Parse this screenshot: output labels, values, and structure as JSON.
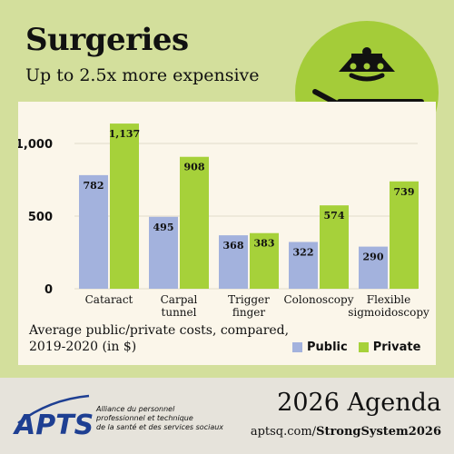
{
  "header": {
    "title": "Surgeries",
    "subtitle": "Up to 2.5x more expensive"
  },
  "icon": {
    "name": "operating-table-icon",
    "circle_color": "#a4cc39"
  },
  "chart_data": {
    "type": "bar",
    "categories": [
      [
        "Cataract"
      ],
      [
        "Carpal",
        "tunnel"
      ],
      [
        "Trigger",
        "finger"
      ],
      [
        "Colonoscopy"
      ],
      [
        "Flexible",
        "sigmoidoscopy"
      ]
    ],
    "series": [
      {
        "name": "Public",
        "values": [
          782,
          495,
          368,
          322,
          290
        ],
        "labels": [
          "782",
          "495",
          "368",
          "322",
          "290"
        ],
        "color": "#a3b2dd"
      },
      {
        "name": "Private",
        "values": [
          1137,
          908,
          383,
          574,
          739
        ],
        "labels": [
          "1,137",
          "908",
          "383",
          "574",
          "739"
        ],
        "color": "#a6d13a"
      }
    ],
    "yticks": [
      0,
      500,
      1000
    ],
    "ytick_labels": [
      "0",
      "500",
      "1,000"
    ],
    "ylim": [
      0,
      1200
    ],
    "grid": true,
    "note": "Average public/private costs, compared, 2019-2020 (in $)",
    "legend_position": "bottom-right"
  },
  "footer": {
    "logo_text": "APTS",
    "org_lines": [
      "Alliance du personnel",
      "professionnel et technique",
      "de la santé et des services sociaux"
    ],
    "agenda_title": "2026 Agenda",
    "url_prefix": "aptsq.com/",
    "url_bold": "StrongSystem2026"
  },
  "colors": {
    "background": "#d3df9c",
    "panel": "#fbf6ea",
    "footer": "#e6e3db",
    "logo_blue": "#1e3f92"
  }
}
